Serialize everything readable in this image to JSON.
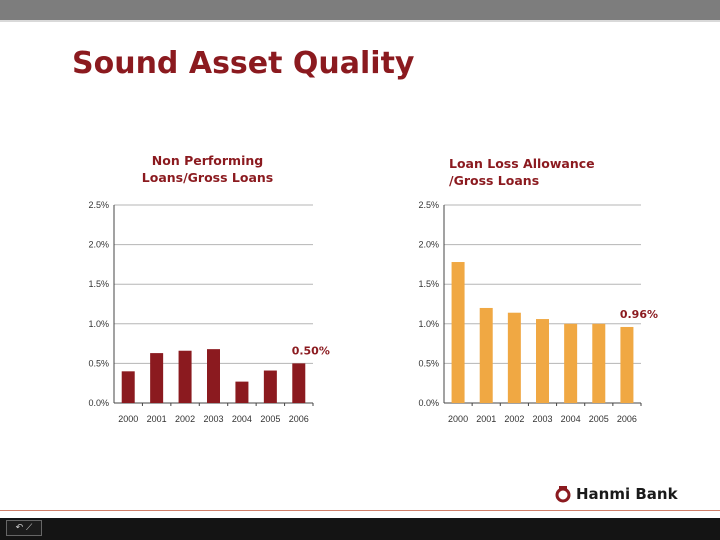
{
  "slide_title": "Sound Asset Quality",
  "brand": {
    "name": "Hanmi Bank",
    "accent": "#8b1a1f"
  },
  "nav_control_glyph": "↶ ⟋",
  "chart_data": [
    {
      "type": "bar",
      "title_lines": [
        "Non Performing",
        "Loans/Gross Loans"
      ],
      "categories": [
        "2000",
        "2001",
        "2002",
        "2003",
        "2004",
        "2005",
        "2006"
      ],
      "values": [
        0.4,
        0.63,
        0.66,
        0.68,
        0.27,
        0.41,
        0.5
      ],
      "value_unit": "%",
      "ylim": [
        0,
        2.5
      ],
      "yticks": [
        "0.0%",
        "0.5%",
        "1.0%",
        "1.5%",
        "2.0%",
        "2.5%"
      ],
      "grid": true,
      "color": "#8b1a1f",
      "annotation": {
        "category_index": 6,
        "text": "0.50%",
        "color": "#8b1a1f"
      }
    },
    {
      "type": "bar",
      "title_lines": [
        "Loan Loss Allowance",
        "/Gross Loans"
      ],
      "categories": [
        "2000",
        "2001",
        "2002",
        "2003",
        "2004",
        "2005",
        "2006"
      ],
      "values": [
        1.78,
        1.2,
        1.14,
        1.06,
        1.0,
        1.0,
        0.96
      ],
      "value_unit": "%",
      "ylim": [
        0,
        2.5
      ],
      "yticks": [
        "0.0%",
        "0.5%",
        "1.0%",
        "1.5%",
        "2.0%",
        "2.5%"
      ],
      "grid": true,
      "color": "#f0a843",
      "annotation": {
        "category_index": 6,
        "text": "0.96%",
        "color": "#8b1a1f"
      }
    }
  ]
}
